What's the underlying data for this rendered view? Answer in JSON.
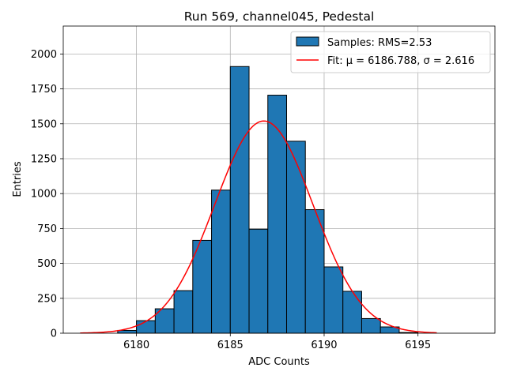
{
  "chart_data": {
    "type": "histogram",
    "title": "Run 569, channel045, Pedestal",
    "xlabel": "ADC Counts",
    "ylabel": "Entries",
    "xlim": [
      6176.1,
      6199.1
    ],
    "ylim": [
      0,
      2200
    ],
    "grid": true,
    "xticks": [
      6180,
      6185,
      6190,
      6195
    ],
    "yticks": [
      0,
      250,
      500,
      750,
      1000,
      1250,
      1500,
      1750,
      2000
    ],
    "bin_width": 1,
    "bins": [
      {
        "left": 6179,
        "count": 20
      },
      {
        "left": 6180,
        "count": 90
      },
      {
        "left": 6181,
        "count": 175
      },
      {
        "left": 6182,
        "count": 305
      },
      {
        "left": 6183,
        "count": 665
      },
      {
        "left": 6184,
        "count": 1025
      },
      {
        "left": 6185,
        "count": 1910
      },
      {
        "left": 6186,
        "count": 745
      },
      {
        "left": 6187,
        "count": 1705
      },
      {
        "left": 6188,
        "count": 1375
      },
      {
        "left": 6189,
        "count": 885
      },
      {
        "left": 6190,
        "count": 475
      },
      {
        "left": 6191,
        "count": 300
      },
      {
        "left": 6192,
        "count": 105
      },
      {
        "left": 6193,
        "count": 45
      },
      {
        "left": 6194,
        "count": 5
      }
    ],
    "fit": {
      "type": "gaussian",
      "mu": 6186.788,
      "sigma": 2.616,
      "peak": 1520,
      "x_range": [
        6177,
        6196
      ]
    },
    "legend": {
      "placement": "top-right",
      "entries": [
        {
          "label": "Samples: RMS=2.53",
          "kind": "patch",
          "color": "#1f77b4"
        },
        {
          "label": "Fit: μ = 6186.788, σ = 2.616",
          "kind": "line",
          "color": "#ff0000"
        }
      ]
    },
    "colors": {
      "bar_fill": "#1f77b4",
      "bar_edge": "#000000",
      "fit_line": "#ff0000",
      "grid": "#b0b0b0"
    }
  }
}
